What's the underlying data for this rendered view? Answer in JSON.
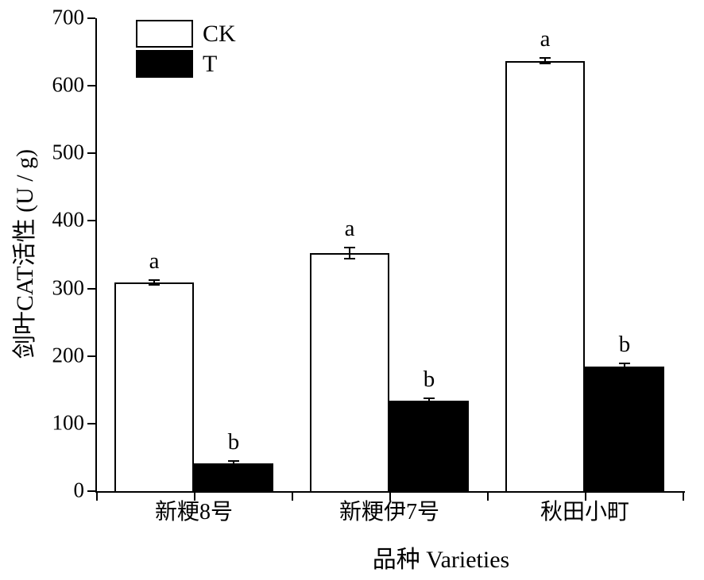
{
  "chart_data": {
    "type": "bar",
    "title": "",
    "xlabel": "品种 Varieties",
    "ylabel": "剑叶CAT活性 (U / g)",
    "ylim": [
      0,
      700
    ],
    "ytick_step": 100,
    "grid": false,
    "legend_position": "top-left-inside",
    "categories": [
      "新粳8号",
      "新粳伊7号",
      "秋田小町"
    ],
    "series": [
      {
        "name": "CK",
        "fill": "#ffffff",
        "values": [
          309,
          352,
          637
        ],
        "errors": [
          4,
          8,
          4
        ],
        "sig_letters": [
          "a",
          "a",
          "a"
        ]
      },
      {
        "name": "T",
        "fill": "#000000",
        "values": [
          41,
          134,
          184
        ],
        "errors": [
          4,
          4,
          5
        ],
        "sig_letters": [
          "b",
          "b",
          "b"
        ]
      }
    ],
    "axis_color": "#000000",
    "background": "#ffffff"
  }
}
